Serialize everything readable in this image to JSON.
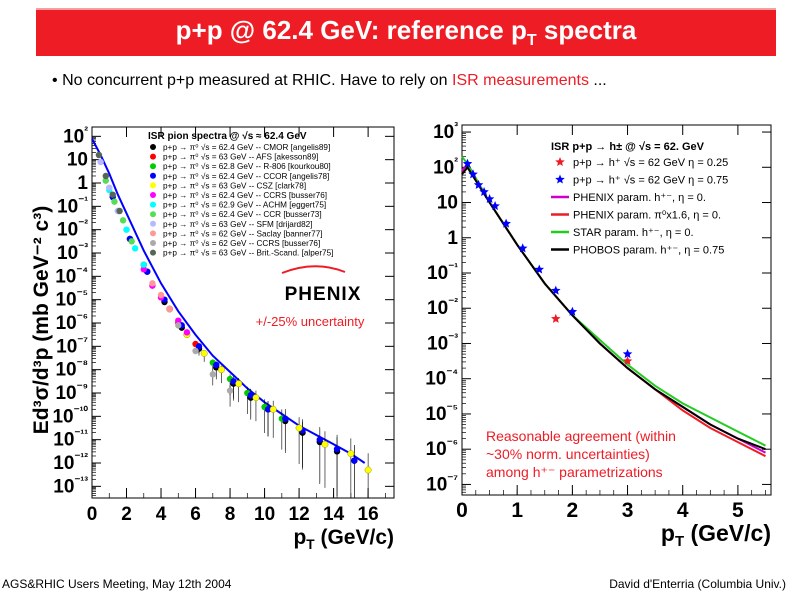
{
  "slide": {
    "title_main": "p+p @ 62.4 GeV: reference p",
    "title_sub": "T",
    "title_end": " spectra",
    "bullet_mark": "•",
    "bullet_text": "No concurrent p+p measured at RHIC. Have to rely on ",
    "bullet_highlight": "ISR measurements",
    "bullet_end": " ...",
    "footer_left": "AGS&RHIC Users Meeting, May 12th 2004",
    "footer_right": "David d'Enterria (Columbia Univ.)",
    "colors": {
      "banner": "#ee1c25",
      "highlight": "#ee1c25",
      "black": "#000000"
    }
  },
  "chart_data": [
    {
      "type": "scatter",
      "title": "ISR pion spectra @ √s ≈ 62.4 GeV",
      "xlabel": "p_T (GeV/c)",
      "ylabel": "Ed³σ/d³p (mb GeV⁻² c³)",
      "xlim": [
        0,
        17.5
      ],
      "ylim_log10": [
        -13.5,
        2.4
      ],
      "log_y": true,
      "x_ticks": [
        "0",
        "2",
        "4",
        "6",
        "8",
        "10",
        "12",
        "14",
        "16"
      ],
      "y_ticks": [
        "10²",
        "10",
        "1",
        "10⁻¹",
        "10⁻²",
        "10⁻³",
        "10⁻⁴",
        "10⁻⁵",
        "10⁻⁶",
        "10⁻⁷",
        "10⁻⁸",
        "10⁻⁹",
        "10⁻¹⁰",
        "10⁻¹¹",
        "10⁻¹²",
        "10⁻¹³"
      ],
      "legend_position": "top-right",
      "series": [
        {
          "name": "p+p → π⁰ √s = 62.4 GeV -- CMOR [angelis89]",
          "color": "#000000",
          "x": [
            2.2,
            3.2,
            4.2,
            5.2,
            6.2,
            7.2,
            8.2,
            9.2,
            10.2,
            11.2,
            12.2,
            13.2,
            14.2,
            15.2
          ],
          "log10y": [
            -2.4,
            -3.8,
            -5.1,
            -6.2,
            -7.1,
            -7.9,
            -8.6,
            -9.2,
            -9.7,
            -10.2,
            -10.7,
            -11.1,
            -11.5,
            -11.9
          ]
        },
        {
          "name": "p+p → π⁰ √s = 63 GeV -- AFS [akesson89]",
          "color": "#ff0000",
          "x": [
            3.0,
            4.0,
            5.0,
            6.0
          ],
          "log10y": [
            -3.5,
            -4.9,
            -6.0,
            -6.9
          ]
        },
        {
          "name": "p+p → π⁰ √s = 62.8 GeV -- R-806 [kourkou80]",
          "color": "#00cc00",
          "x": [
            7.0,
            8.0,
            9.0,
            10.0,
            11.0
          ],
          "log10y": [
            -7.7,
            -8.4,
            -9.0,
            -9.6,
            -10.1
          ]
        },
        {
          "name": "p+p → π⁰ √s = 62.4 GeV -- CCOR [angelis78]",
          "color": "#0000ff",
          "x": [
            1.2,
            2.2,
            3.2,
            4.2,
            5.2,
            6.2,
            7.2,
            8.2,
            9.2,
            10.2,
            11.2,
            12.2,
            13.2,
            14.2,
            15.2
          ],
          "log10y": [
            -0.6,
            -2.4,
            -3.8,
            -5.0,
            -6.1,
            -7.0,
            -7.8,
            -8.5,
            -9.1,
            -9.7,
            -10.1,
            -10.6,
            -11.0,
            -11.4,
            -11.9
          ]
        },
        {
          "name": "p+p → π⁰ √s = 63 GeV -- CSZ [clark78]",
          "color": "#ffff00",
          "x": [
            4.5,
            5.5,
            6.5,
            7.5,
            8.5,
            9.5,
            10.5,
            12.0,
            13.5,
            15.0,
            16.0
          ],
          "log10y": [
            -5.4,
            -6.5,
            -7.3,
            -8.0,
            -8.6,
            -9.2,
            -9.7,
            -10.5,
            -11.2,
            -11.6,
            -12.3
          ]
        },
        {
          "name": "p+p → π⁰ √s = 62.4 GeV -- CCRS [busser76]",
          "color": "#ff00ff",
          "x": [
            3.0,
            3.5,
            4.0,
            4.5,
            5.0,
            5.5
          ],
          "log10y": [
            -3.7,
            -4.4,
            -4.9,
            -5.4,
            -5.9,
            -6.4
          ]
        },
        {
          "name": "p+p → π⁰ √s = 62.9 GeV -- ACHM [eggert75]",
          "color": "#00ffff",
          "x": [
            1.0,
            1.5,
            2.0,
            2.5,
            3.0
          ],
          "log10y": [
            -0.3,
            -1.2,
            -2.0,
            -2.8,
            -3.5
          ]
        },
        {
          "name": "p+p → π⁰ √s = 62.4 GeV -- CCR [busser73]",
          "color": "#55dd55",
          "x": [
            0.8,
            1.3,
            1.8,
            2.3
          ],
          "log10y": [
            0.1,
            -0.8,
            -1.6,
            -2.5
          ]
        },
        {
          "name": "p+p → π⁰ √s = 63 GeV -- SFM [drijard82]",
          "color": "#b8b8ff",
          "x": [
            0.5,
            1.0,
            1.5
          ],
          "log10y": [
            0.9,
            -0.2,
            -1.2
          ]
        },
        {
          "name": "p+p → π⁰ √s = 62 GeV -- Saclay [banner77]",
          "color": "#ff9999",
          "x": [
            3.5,
            4.0,
            4.5
          ],
          "log10y": [
            -4.3,
            -4.8,
            -5.4
          ]
        },
        {
          "name": "p+p → π⁰ √s = 62 GeV -- CCRS [busser76]",
          "color": "#aaaaaa",
          "x": [
            5.0,
            6.0,
            7.0,
            8.0
          ],
          "log10y": [
            -6.1,
            -7.2,
            -8.2,
            -8.9
          ]
        },
        {
          "name": "p+p → π⁰ √s = 63 GeV -- Brit.-Scand. [alper75]",
          "color": "#556655",
          "x": [
            0.4,
            0.8,
            1.2,
            1.6
          ],
          "log10y": [
            1.2,
            0.3,
            -0.5,
            -1.2
          ]
        }
      ],
      "fit_curve": {
        "color": "#0000ff",
        "x": [
          0.0,
          0.5,
          1,
          1.5,
          2,
          3,
          4,
          5,
          6,
          7,
          8,
          9,
          10,
          11,
          12,
          13,
          14,
          15,
          15.8
        ],
        "log10y": [
          1.9,
          1.2,
          0.4,
          -0.5,
          -1.3,
          -2.9,
          -4.3,
          -5.5,
          -6.5,
          -7.4,
          -8.1,
          -8.8,
          -9.4,
          -9.9,
          -10.4,
          -10.8,
          -11.2,
          -11.6,
          -12.0
        ]
      },
      "annotations": {
        "logo": "PHENIX",
        "uncertainty": "+/-25% uncertainty",
        "logo_colors": [
          "#000000",
          "#ee1c25"
        ]
      }
    },
    {
      "type": "line",
      "title": "ISR p+p → h± @ √s = 62. GeV",
      "xlabel": "p_T (GeV/c)",
      "ylabel": "",
      "xlim": [
        0,
        5.6
      ],
      "ylim_log10": [
        -7.3,
        3.2
      ],
      "log_y": true,
      "x_ticks": [
        "0",
        "1",
        "2",
        "3",
        "4",
        "5"
      ],
      "y_ticks": [
        "10³",
        "10²",
        "10",
        "1",
        "10⁻¹",
        "10⁻²",
        "10⁻³",
        "10⁻⁴",
        "10⁻⁵",
        "10⁻⁶",
        "10⁻⁷"
      ],
      "legend_position": "top-right",
      "series": [
        {
          "name": "p+p → h⁺ √s = 62 GeV η = 0.25",
          "kind": "points",
          "marker": "star",
          "color": "#ee1c25",
          "x": [
            1.7,
            3.0
          ],
          "log10y": [
            -2.3,
            -3.5
          ]
        },
        {
          "name": "p+p → h⁺ √s = 62 GeV η = 0.75",
          "kind": "points",
          "marker": "star",
          "color": "#0000ff",
          "x": [
            0.1,
            0.2,
            0.3,
            0.4,
            0.5,
            0.6,
            0.8,
            1.1,
            1.4,
            1.7,
            2.0,
            3.0
          ],
          "log10y": [
            2.1,
            1.8,
            1.5,
            1.3,
            1.1,
            0.9,
            0.4,
            -0.3,
            -0.9,
            -1.5,
            -2.1,
            -3.3
          ]
        },
        {
          "name": "PHENIX param. h⁺⁻, η = 0.",
          "kind": "line",
          "color": "#cc00cc",
          "x": [
            0.0,
            0.1,
            0.5,
            1,
            1.5,
            2,
            2.5,
            3,
            3.5,
            4,
            4.5,
            5,
            5.5
          ],
          "log10y": [
            1.9,
            2.1,
            1.0,
            -0.2,
            -1.3,
            -2.2,
            -3.0,
            -3.7,
            -4.3,
            -4.8,
            -5.3,
            -5.7,
            -6.1
          ]
        },
        {
          "name": "PHENIX param. π⁰x1.6, η = 0.",
          "kind": "line",
          "color": "#ee1c25",
          "x": [
            0.0,
            0.1,
            0.5,
            1,
            1.5,
            2,
            2.5,
            3,
            3.5,
            4,
            4.5,
            5,
            5.5
          ],
          "log10y": [
            1.8,
            2.0,
            1.0,
            -0.2,
            -1.3,
            -2.2,
            -3.0,
            -3.7,
            -4.3,
            -4.9,
            -5.4,
            -5.8,
            -6.2
          ]
        },
        {
          "name": "STAR param. h⁺⁻, η = 0.",
          "kind": "line",
          "color": "#22cc22",
          "x": [
            0.0,
            0.1,
            0.5,
            1,
            1.5,
            2,
            2.5,
            3,
            3.5,
            4,
            4.5,
            5,
            5.5
          ],
          "log10y": [
            2.3,
            2.1,
            1.0,
            -0.2,
            -1.3,
            -2.2,
            -2.9,
            -3.6,
            -4.2,
            -4.7,
            -5.1,
            -5.5,
            -5.9
          ]
        },
        {
          "name": "PHOBOS param. h⁺⁻, η = 0.75",
          "kind": "line",
          "color": "#000000",
          "x": [
            0.0,
            0.1,
            0.5,
            1,
            1.5,
            2,
            2.5,
            3,
            3.5,
            4,
            4.5,
            5,
            5.5
          ],
          "log10y": [
            1.8,
            2.0,
            1.0,
            -0.2,
            -1.3,
            -2.2,
            -3.0,
            -3.7,
            -4.3,
            -4.8,
            -5.3,
            -5.7,
            -6.0
          ]
        }
      ],
      "annotation": [
        "Reasonable agreement (within",
        "~30% norm. uncertainties)",
        "among h⁺⁻ parametrizations"
      ]
    }
  ]
}
